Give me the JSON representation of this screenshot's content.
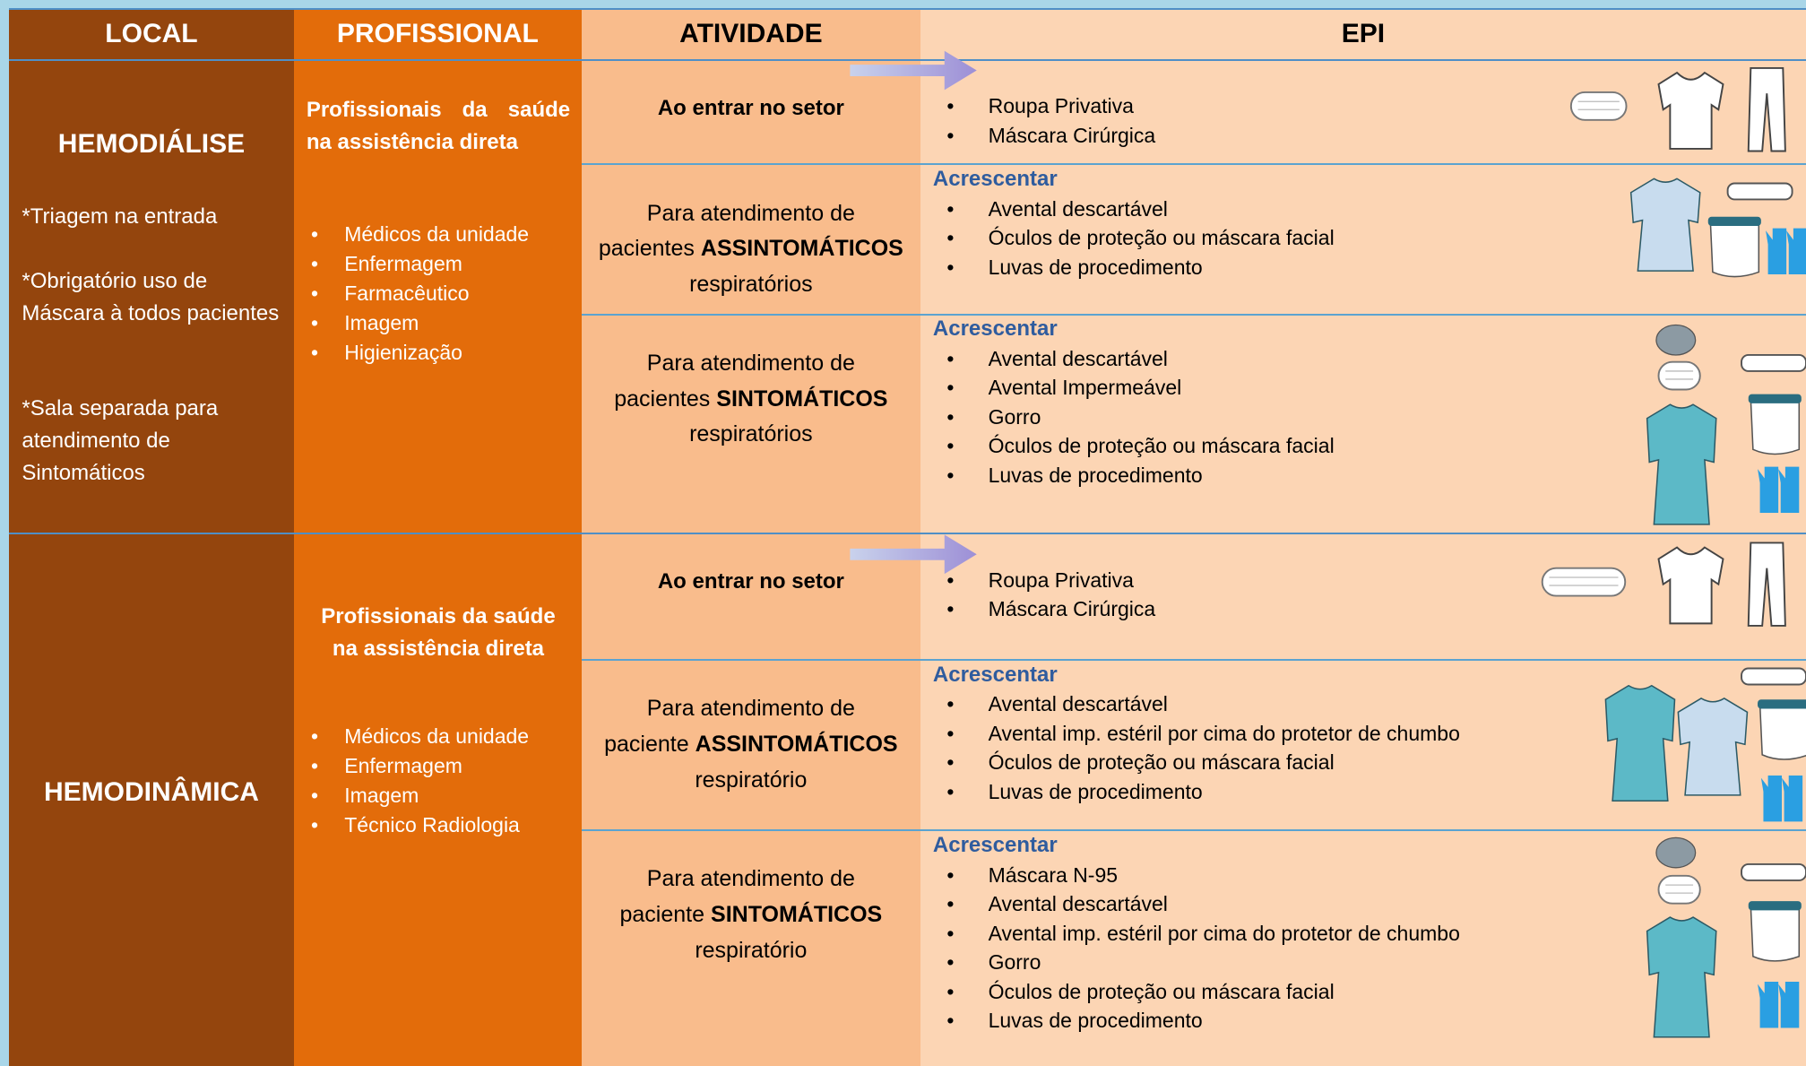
{
  "header": {
    "columns": [
      "LOCAL",
      "PROFISSIONAL",
      "ATIVIDADE",
      "EPI"
    ]
  },
  "sections": [
    {
      "local": "HEMODIÁLISE",
      "notes": [
        "*Triagem na entrada",
        "*Obrigatório uso de Máscara à todos pacientes",
        "*Sala separada para atendimento de Sintomáticos"
      ],
      "professional": {
        "intro": "Profissionais da saúde na assistência direta",
        "list": [
          "Médicos da unidade",
          "Enfermagem",
          "Farmacêutico",
          "Imagem",
          "Higienização"
        ]
      },
      "rows": [
        {
          "activity": {
            "bold": "Ao entrar no setor"
          },
          "epi": {
            "items": [
              "Roupa Privativa",
              "Máscara Cirúrgica"
            ]
          }
        },
        {
          "activity": {
            "line1": "Para atendimento de",
            "prefix": "pacientes",
            "bold": "ASSINTOMÁTICOS",
            "line3": "respiratórios"
          },
          "epi": {
            "heading": "Acrescentar",
            "items": [
              "Avental descartável",
              "Óculos de proteção ou máscara facial",
              "Luvas de procedimento"
            ]
          }
        },
        {
          "activity": {
            "line1": "Para atendimento de",
            "prefix": "pacientes",
            "bold": "SINTOMÁTICOS",
            "line3": "respiratórios"
          },
          "epi": {
            "heading": "Acrescentar",
            "items": [
              "Avental descartável",
              "Avental Impermeável",
              "Gorro",
              "Óculos de proteção ou máscara facial",
              "Luvas de procedimento"
            ]
          }
        }
      ]
    },
    {
      "local": "HEMODINÂMICA",
      "professional": {
        "intro": "Profissionais da saúde na assistência direta",
        "list": [
          "Médicos da unidade",
          "Enfermagem",
          "Imagem",
          "Técnico Radiologia"
        ]
      },
      "rows": [
        {
          "activity": {
            "bold": "Ao entrar no setor"
          },
          "epi": {
            "items": [
              "Roupa Privativa",
              "Máscara Cirúrgica"
            ]
          }
        },
        {
          "activity": {
            "line1": "Para atendimento de",
            "prefix": "paciente",
            "bold": "ASSINTOMÁTICOS",
            "line3": "respiratório"
          },
          "epi": {
            "heading": "Acrescentar",
            "items": [
              "Avental descartável",
              "Avental imp. estéril por cima do protetor de chumbo",
              "Óculos de proteção ou máscara facial",
              "Luvas de procedimento"
            ]
          }
        },
        {
          "activity": {
            "line1": "Para atendimento de",
            "prefix": "paciente",
            "bold": "SINTOMÁTICOS",
            "line3": "respiratório"
          },
          "epi": {
            "heading": "Acrescentar",
            "items": [
              "Máscara  N-95",
              "Avental descartável",
              "Avental imp. estéril por cima do protetor de chumbo",
              "Gorro",
              "Óculos de proteção ou máscara facial",
              "Luvas de procedimento"
            ]
          }
        }
      ]
    }
  ]
}
